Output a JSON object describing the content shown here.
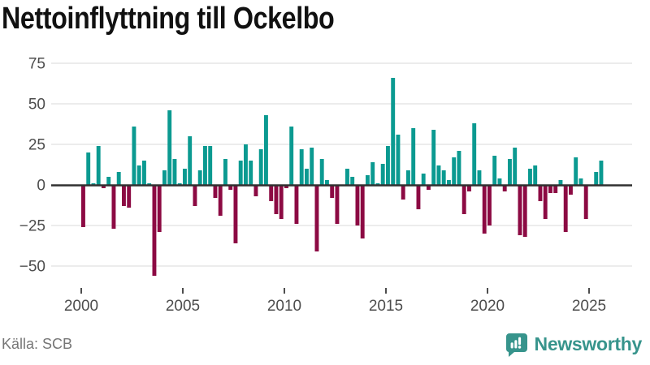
{
  "title": "Nettoinflyttning till Ockelbo",
  "source": {
    "text": "Källa: SCB"
  },
  "logo": {
    "brand": "Newsworthy",
    "icon": "newsworthy-speech-bubble-chart-icon"
  },
  "colors": {
    "positive": "#0b9a91",
    "negative": "#8c0a43",
    "axis": "#303030",
    "gridline": "#e1e1e1",
    "tick_label": "#4d4d4d",
    "source_text": "#767676",
    "brand": "#37948c",
    "title": "#111111",
    "background": "#ffffff"
  },
  "chart_data": {
    "type": "bar",
    "title": "Nettoinflyttning till Ockelbo",
    "unit": "persons (net migration per quarter)",
    "frequency": "quarterly",
    "x_start": "2000 Q1",
    "x_end": "2025 Q3",
    "grid": "horizontal",
    "legend": "none",
    "ylim": [
      -60,
      85
    ],
    "y_ticks": [
      75,
      50,
      25,
      0,
      -25,
      -50
    ],
    "y_tick_labels": [
      "75",
      "50",
      "25",
      "0",
      "−25",
      "−50"
    ],
    "x_tick_years": [
      2000,
      2005,
      2010,
      2015,
      2020,
      2025
    ],
    "x_tick_labels": [
      "2000",
      "2005",
      "2010",
      "2015",
      "2020",
      "2025"
    ],
    "values": [
      -26,
      20,
      1,
      24,
      -2,
      5,
      -27,
      8,
      -13,
      -14,
      36,
      12,
      15,
      1,
      -56,
      -29,
      9,
      46,
      16,
      1,
      10,
      30,
      -13,
      9,
      24,
      24,
      -8,
      -19,
      16,
      -3,
      -36,
      15,
      25,
      15,
      -7,
      22,
      43,
      -10,
      -18,
      -21,
      -2,
      36,
      -24,
      22,
      10,
      23,
      -41,
      16,
      3,
      -8,
      -24,
      0,
      10,
      5,
      -25,
      -33,
      6,
      14,
      1,
      13,
      24,
      66,
      31,
      -9,
      9,
      35,
      -15,
      7,
      -3,
      34,
      12,
      9,
      3,
      17,
      21,
      -18,
      -4,
      38,
      9,
      -30,
      -25,
      18,
      4,
      -4,
      16,
      23,
      -31,
      -32,
      10,
      12,
      -10,
      -21,
      -5,
      -5,
      3,
      -29,
      -6,
      17,
      4,
      -21,
      0,
      8,
      15
    ]
  }
}
